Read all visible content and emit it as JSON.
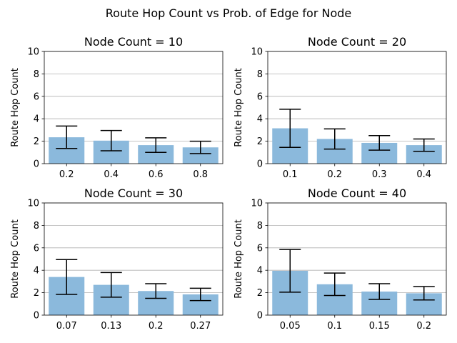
{
  "figure": {
    "suptitle": "Route Hop Count vs Prob. of Edge for Node"
  },
  "style": {
    "bar_color": "#8bb9dc",
    "grid_color": "#b0b0b0",
    "error_color": "#000000"
  },
  "chart_data": [
    {
      "type": "bar",
      "title": "Node Count = 10",
      "xlabel": "",
      "ylabel": "Route Hop Count",
      "ylim": [
        0,
        10
      ],
      "yticks": [
        0,
        2,
        4,
        6,
        8,
        10
      ],
      "grid": "y",
      "categories": [
        "0.2",
        "0.4",
        "0.6",
        "0.8"
      ],
      "values": [
        2.35,
        2.05,
        1.65,
        1.45
      ],
      "error": [
        1.0,
        0.9,
        0.65,
        0.55
      ]
    },
    {
      "type": "bar",
      "title": "Node Count = 20",
      "xlabel": "",
      "ylabel": "Route Hop Count",
      "ylim": [
        0,
        10
      ],
      "yticks": [
        0,
        2,
        4,
        6,
        8,
        10
      ],
      "grid": "y",
      "categories": [
        "0.1",
        "0.2",
        "0.3",
        "0.4"
      ],
      "values": [
        3.15,
        2.2,
        1.85,
        1.65
      ],
      "error": [
        1.7,
        0.9,
        0.65,
        0.55
      ]
    },
    {
      "type": "bar",
      "title": "Node Count = 30",
      "xlabel": "",
      "ylabel": "Route Hop Count",
      "ylim": [
        0,
        10
      ],
      "yticks": [
        0,
        2,
        4,
        6,
        8,
        10
      ],
      "grid": "y",
      "categories": [
        "0.07",
        "0.13",
        "0.2",
        "0.27"
      ],
      "values": [
        3.4,
        2.7,
        2.15,
        1.85
      ],
      "error": [
        1.55,
        1.1,
        0.65,
        0.55
      ]
    },
    {
      "type": "bar",
      "title": "Node Count = 40",
      "xlabel": "",
      "ylabel": "Route Hop Count",
      "ylim": [
        0,
        10
      ],
      "yticks": [
        0,
        2,
        4,
        6,
        8,
        10
      ],
      "grid": "y",
      "categories": [
        "0.05",
        "0.1",
        "0.15",
        "0.2"
      ],
      "values": [
        3.95,
        2.75,
        2.1,
        1.95
      ],
      "error": [
        1.9,
        1.0,
        0.7,
        0.6
      ]
    }
  ]
}
